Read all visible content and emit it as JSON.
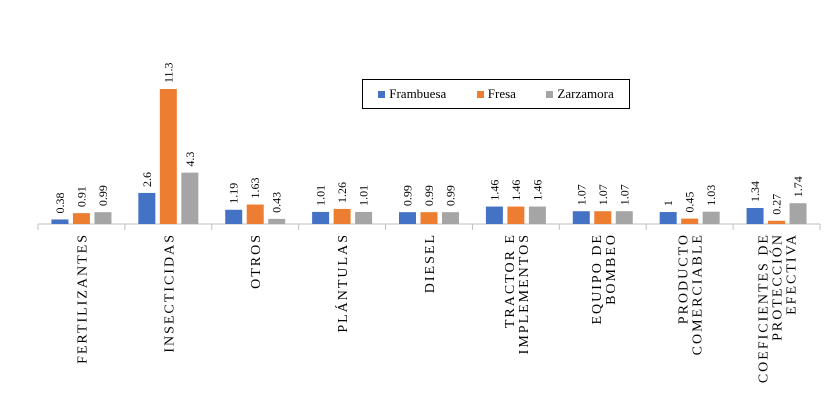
{
  "chart_data": {
    "type": "bar",
    "categories": [
      "FERTILIZANTES",
      "INSECTICIDAS",
      "OTROS",
      "PLÁNTULAS",
      "DIESEL",
      "TRACTOR E IMPLEMENTOS",
      "EQUIPO DE BOMBEO",
      "PRODUCTO COMERCIABLE",
      "COEFICIENTES DE PROTECCIÓN EFECTIVA"
    ],
    "category_lines": [
      [
        "FERTILIZANTES"
      ],
      [
        "INSECTICIDAS"
      ],
      [
        "OTROS"
      ],
      [
        "PLÁNTULAS"
      ],
      [
        "DIESEL"
      ],
      [
        "TRACTOR E",
        "IMPLEMENTOS"
      ],
      [
        "EQUIPO DE",
        "BOMBEO"
      ],
      [
        "PRODUCTO",
        "COMERCIABLE"
      ],
      [
        "COEFICIENTES DE",
        "PROTECCIÓN",
        "EFECTIVA"
      ]
    ],
    "series": [
      {
        "name": "Frambuesa",
        "color": "#4472C4",
        "values": [
          0.38,
          2.6,
          1.19,
          1.01,
          0.99,
          1.46,
          1.07,
          1,
          1.34
        ],
        "labels": [
          "0.38",
          "2.6",
          "1.19",
          "1.01",
          "0.99",
          "1.46",
          "1.07",
          "1",
          "1.34"
        ]
      },
      {
        "name": "Fresa",
        "color": "#ED7D31",
        "values": [
          0.91,
          11.3,
          1.63,
          1.26,
          0.99,
          1.46,
          1.07,
          0.45,
          0.27
        ],
        "labels": [
          "0.91",
          "11.3",
          "1.63",
          "1.26",
          "0.99",
          "1.46",
          "1.07",
          "0.45",
          "0.27"
        ]
      },
      {
        "name": "Zarzamora",
        "color": "#A5A5A5",
        "values": [
          0.99,
          4.3,
          0.43,
          1.01,
          0.99,
          1.46,
          1.07,
          1.03,
          1.74
        ],
        "labels": [
          "0.99",
          "4.3",
          "0.43",
          "1.01",
          "0.99",
          "1.46",
          "1.07",
          "1.03",
          "1.74"
        ]
      }
    ],
    "legend_position": "top-center",
    "gridlines": false,
    "title": "",
    "xlabel": "",
    "ylabel": ""
  }
}
